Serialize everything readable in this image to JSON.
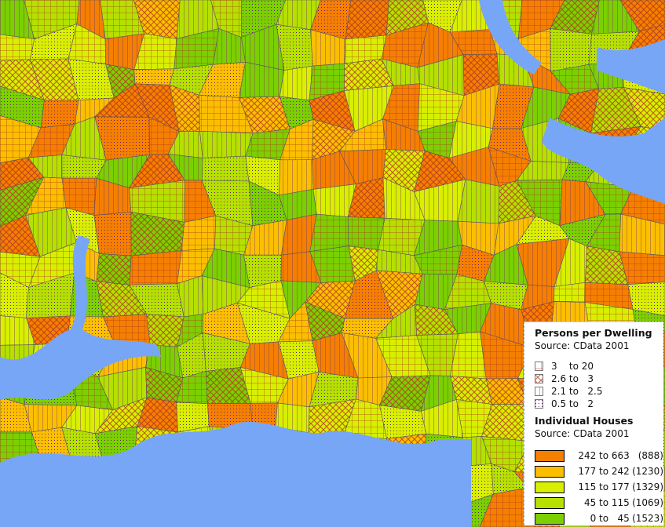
{
  "map": {
    "water_color": "#77a6f7",
    "boundary_color": "#222222"
  },
  "legend": {
    "persons": {
      "title": "Persons per Dwelling",
      "source": "Source: CData 2001",
      "classes": [
        {
          "label": "3    to 20",
          "pattern": "grid-icon"
        },
        {
          "label": "2.6 to   3",
          "pattern": "crosshatch-icon"
        },
        {
          "label": "2.1 to   2.5",
          "pattern": "vertical-lines-icon"
        },
        {
          "label": "0.5 to   2",
          "pattern": "dots-icon"
        }
      ]
    },
    "houses": {
      "title": "Individual Houses",
      "source": "Source: CData 2001",
      "classes": [
        {
          "label": "242 to 663",
          "count": "(888)",
          "color": "#f57f00"
        },
        {
          "label": "177 to 242",
          "count": "(1230)",
          "color": "#fbbf00"
        },
        {
          "label": "115 to 177",
          "count": "(1329)",
          "color": "#d8ef00"
        },
        {
          "label": "45 to 115",
          "count": "(1069)",
          "color": "#b5e000"
        },
        {
          "label": "0 to   45",
          "count": "(1523)",
          "color": "#7ccf00"
        }
      ]
    }
  }
}
